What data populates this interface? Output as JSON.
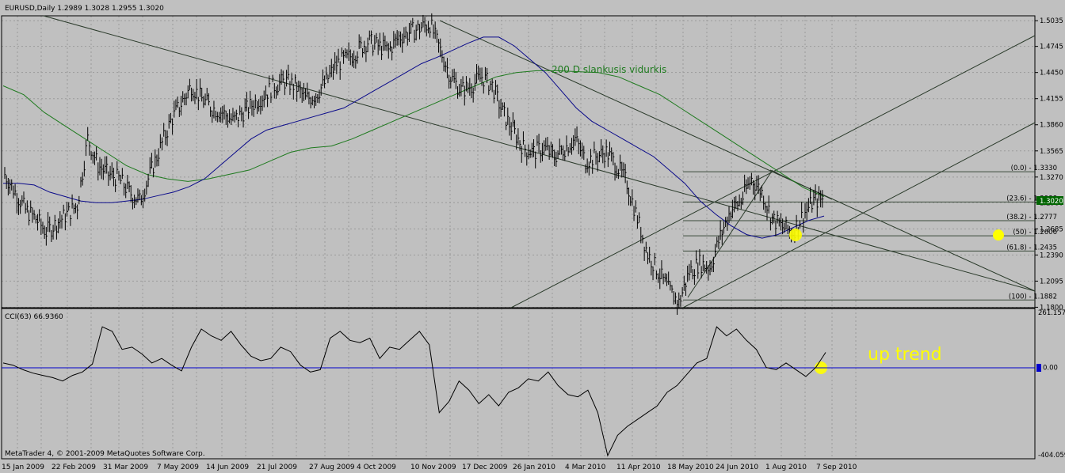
{
  "window": {
    "header_text": "EURUSD,Daily  1.2989 1.3028 1.2955 1.3020",
    "copyright": "MetaTrader 4, © 2001-2009 MetaQuotes Software Corp."
  },
  "colors": {
    "background": "#c0c0c0",
    "grid": "#9a9a9a",
    "ma_fast": "#0a0a8a",
    "ma_slow": "#1e7a1e",
    "cci_zero": "#0000cc",
    "highlight": "#ffff00",
    "price_tag_bg": "#006400"
  },
  "chart_data": [
    {
      "type": "line",
      "name": "EURUSD Daily price",
      "symbol": "EURUSD",
      "timeframe": "Daily",
      "ohlc_last": {
        "open": 1.2989,
        "high": 1.3028,
        "low": 1.2955,
        "close": 1.302
      },
      "current_price_label": "1.3020",
      "y_ticks": [
        "1.5035",
        "1.4745",
        "1.4450",
        "1.4155",
        "1.3860",
        "1.3565",
        "1.3270",
        "1.2980",
        "1.2685",
        "1.2390",
        "1.2095",
        "1.1800"
      ],
      "y_tick_values": [
        1.5035,
        1.4745,
        1.445,
        1.4155,
        1.386,
        1.3565,
        1.327,
        1.298,
        1.2685,
        1.239,
        1.2095,
        1.18
      ],
      "ylim": [
        1.1795,
        1.509
      ],
      "x_ticks": [
        "15 Jan 2009",
        "22 Feb 2009",
        "31 Mar 2009",
        "7 May 2009",
        "14 Jun 2009",
        "21 Jul 2009",
        "27 Aug 2009",
        "4 Oct 2009",
        "10 Nov 2009",
        "17 Dec 2009",
        "26 Jan 2010",
        "4 Mar 2010",
        "11 Apr 2010",
        "18 May 2010",
        "24 Jun 2010",
        "1 Aug 2010",
        "7 Sep 2010"
      ],
      "series": [
        {
          "kind": "price",
          "values": [
            1.33,
            1.31,
            1.29,
            1.28,
            1.265,
            1.275,
            1.285,
            1.295,
            1.37,
            1.34,
            1.33,
            1.325,
            1.31,
            1.3,
            1.33,
            1.36,
            1.39,
            1.41,
            1.43,
            1.415,
            1.405,
            1.4,
            1.39,
            1.4,
            1.41,
            1.42,
            1.43,
            1.435,
            1.43,
            1.415,
            1.42,
            1.435,
            1.455,
            1.46,
            1.47,
            1.48,
            1.475,
            1.47,
            1.485,
            1.49,
            1.495,
            1.5,
            1.47,
            1.44,
            1.425,
            1.43,
            1.44,
            1.43,
            1.4,
            1.38,
            1.36,
            1.355,
            1.36,
            1.35,
            1.36,
            1.37,
            1.345,
            1.35,
            1.355,
            1.34,
            1.32,
            1.28,
            1.24,
            1.22,
            1.2,
            1.185,
            1.22,
            1.23,
            1.225,
            1.26,
            1.29,
            1.3,
            1.325,
            1.31,
            1.28,
            1.27,
            1.265,
            1.285,
            1.3,
            1.302
          ]
        },
        {
          "kind": "moving_average",
          "period": 50,
          "values": [
            1.32,
            1.32,
            1.318,
            1.31,
            1.305,
            1.3,
            1.298,
            1.298,
            1.3,
            1.302,
            1.306,
            1.31,
            1.316,
            1.325,
            1.34,
            1.355,
            1.37,
            1.38,
            1.385,
            1.39,
            1.395,
            1.4,
            1.405,
            1.415,
            1.425,
            1.435,
            1.445,
            1.455,
            1.462,
            1.47,
            1.478,
            1.485,
            1.485,
            1.475,
            1.46,
            1.445,
            1.425,
            1.405,
            1.39,
            1.38,
            1.37,
            1.36,
            1.35,
            1.335,
            1.32,
            1.3,
            1.285,
            1.272,
            1.262,
            1.258,
            1.262,
            1.27,
            1.278,
            1.283
          ]
        },
        {
          "kind": "moving_average",
          "period": 200,
          "name": "200 D slankusis vidurkis",
          "values": [
            1.43,
            1.42,
            1.4,
            1.385,
            1.37,
            1.355,
            1.34,
            1.33,
            1.325,
            1.322,
            1.325,
            1.33,
            1.335,
            1.345,
            1.355,
            1.36,
            1.362,
            1.37,
            1.38,
            1.39,
            1.4,
            1.41,
            1.42,
            1.43,
            1.44,
            1.445,
            1.447,
            1.447,
            1.446,
            1.445,
            1.44,
            1.43,
            1.42,
            1.405,
            1.39,
            1.375,
            1.36,
            1.345,
            1.33,
            1.315,
            1.305
          ]
        }
      ],
      "annotations": [
        "200 D slankusis vidurkis"
      ],
      "fibonacci": [
        {
          "level": "(0.0) - 1.3330",
          "price": 1.333
        },
        {
          "level": "(23.6) - 1.2988",
          "price": 1.2988
        },
        {
          "level": "(38.2) - 1.2777",
          "price": 1.2777
        },
        {
          "level": "(50) - 1.2606",
          "price": 1.2606,
          "highlighted": true
        },
        {
          "level": "(61.8) - 1.2435",
          "price": 1.2435
        },
        {
          "level": "(100) - 1.1882",
          "price": 1.1882
        }
      ],
      "grid": true
    },
    {
      "type": "line",
      "name": "CCI(63)",
      "header_text": "CCI(63) 66.9360",
      "current_value": 66.936,
      "y_ticks": [
        "261.157",
        "0.00",
        "-404.059"
      ],
      "y_tick_values": [
        261.157,
        0,
        -404.059
      ],
      "ylim": [
        -404.059,
        261.157
      ],
      "zero_label": "0.00",
      "values": [
        20,
        10,
        -10,
        -25,
        -35,
        -45,
        -60,
        -35,
        -20,
        15,
        180,
        160,
        80,
        90,
        60,
        20,
        40,
        10,
        -15,
        90,
        170,
        140,
        120,
        160,
        100,
        50,
        30,
        40,
        90,
        70,
        10,
        -20,
        -10,
        130,
        160,
        120,
        110,
        130,
        40,
        90,
        80,
        120,
        160,
        100,
        -200,
        -150,
        -60,
        -100,
        -160,
        -120,
        -170,
        -110,
        -90,
        -50,
        -60,
        -20,
        -80,
        -120,
        -130,
        -100,
        -200,
        -390,
        -300,
        -260,
        -230,
        -200,
        -170,
        -110,
        -80,
        -30,
        20,
        40,
        180,
        140,
        170,
        120,
        80,
        0,
        -10,
        20,
        -10,
        -40,
        0,
        67
      ],
      "annotation": "up trend",
      "grid": true
    }
  ]
}
